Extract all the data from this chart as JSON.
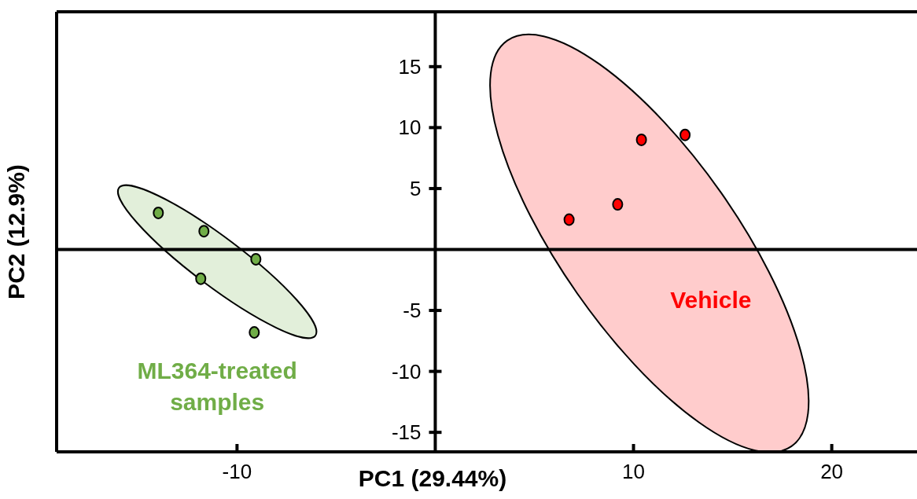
{
  "chart_data": {
    "type": "scatter",
    "xlabel": "PC1 (29.44%)",
    "ylabel": "PC2 (12.9%)",
    "xlim": [
      -19.1,
      24.3
    ],
    "ylim": [
      -16.6,
      19.5
    ],
    "xticks": [
      -10,
      10,
      20
    ],
    "yticks": [
      15,
      10,
      5,
      -5,
      -10,
      -15
    ],
    "grid": false,
    "legend": false,
    "marker": "circle",
    "series": [
      {
        "name": "ML364-treated samples",
        "color": "#70ad47",
        "x": [
          -13.97,
          -11.67,
          -9.05,
          -11.83,
          -9.13
        ],
        "values": [
          3.0,
          1.5,
          -0.8,
          -2.4,
          -6.8
        ]
      },
      {
        "name": "Vehicle",
        "color": "#ff0000",
        "x": [
          6.75,
          9.2,
          10.4,
          12.6
        ],
        "values": [
          2.45,
          3.7,
          9.0,
          9.4
        ]
      }
    ]
  }
}
